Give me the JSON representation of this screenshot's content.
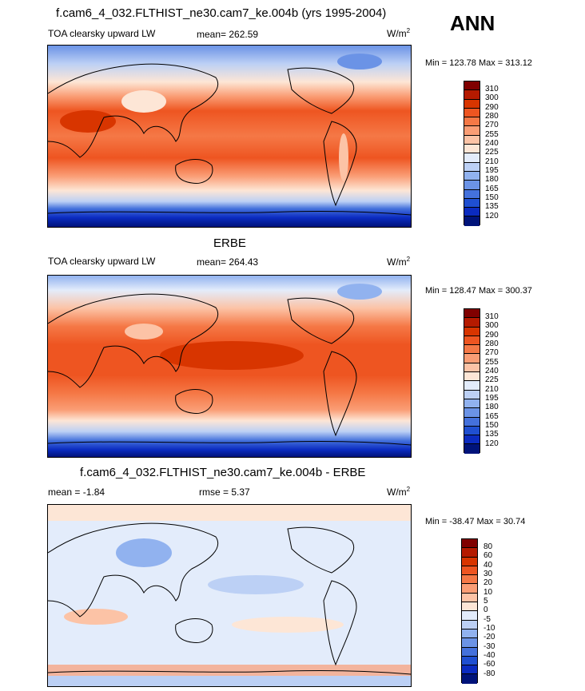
{
  "season": "ANN",
  "panels": [
    {
      "title": "f.cam6_4_032.FLTHIST_ne30.cam7_ke.004b (yrs 1995-2004)",
      "variable": "TOA clearsky upward LW",
      "stat1": "mean= 262.59",
      "stat2": "",
      "units": "W/m",
      "units_sup": "2",
      "minmax": "Min = 123.78 Max = 313.12",
      "colorbar": {
        "labels": [
          "310",
          "300",
          "290",
          "280",
          "270",
          "255",
          "240",
          "225",
          "210",
          "195",
          "180",
          "165",
          "150",
          "135",
          "120"
        ],
        "colors": [
          "#800000",
          "#b51a00",
          "#d83500",
          "#ee5521",
          "#f57846",
          "#fa9d75",
          "#fcc3a6",
          "#fde6d6",
          "#e3ecfb",
          "#bcd0f5",
          "#91b2ef",
          "#6b93e6",
          "#4471dc",
          "#1f4fd1",
          "#0b2bc0",
          "#00137a"
        ]
      }
    },
    {
      "title": "ERBE",
      "variable": "TOA clearsky upward LW",
      "stat1": "mean= 264.43",
      "stat2": "",
      "units": "W/m",
      "units_sup": "2",
      "minmax": "Min = 128.47 Max = 300.37",
      "colorbar": {
        "labels": [
          "310",
          "300",
          "290",
          "280",
          "270",
          "255",
          "240",
          "225",
          "210",
          "195",
          "180",
          "165",
          "150",
          "135",
          "120"
        ],
        "colors": [
          "#800000",
          "#b51a00",
          "#d83500",
          "#ee5521",
          "#f57846",
          "#fa9d75",
          "#fcc3a6",
          "#fde6d6",
          "#e3ecfb",
          "#bcd0f5",
          "#91b2ef",
          "#6b93e6",
          "#4471dc",
          "#1f4fd1",
          "#0b2bc0",
          "#00137a"
        ]
      }
    },
    {
      "title": "f.cam6_4_032.FLTHIST_ne30.cam7_ke.004b - ERBE",
      "variable": "mean =  -1.84",
      "stat1": "rmse =   5.37",
      "stat2": "",
      "units": "W/m",
      "units_sup": "2",
      "minmax": "Min = -38.47 Max =  30.74",
      "colorbar": {
        "labels": [
          "80",
          "60",
          "40",
          "30",
          "20",
          "10",
          "5",
          "0",
          "-5",
          "-10",
          "-20",
          "-30",
          "-40",
          "-60",
          "-80"
        ],
        "colors": [
          "#800000",
          "#b51a00",
          "#d83500",
          "#ee5521",
          "#f57846",
          "#fa9d75",
          "#fcc3a6",
          "#fde6d6",
          "#e3ecfb",
          "#bcd0f5",
          "#91b2ef",
          "#6b93e6",
          "#4471dc",
          "#1f4fd1",
          "#0b2bc0",
          "#00137a"
        ]
      }
    }
  ]
}
